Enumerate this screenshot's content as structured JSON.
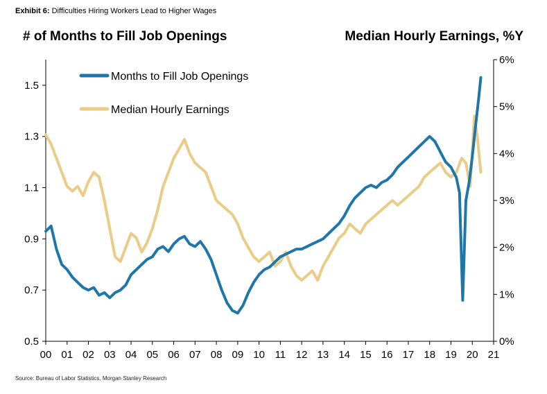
{
  "header": {
    "exhibit_label": "Exhibit 6:",
    "exhibit_title": "Difficulties Hiring Workers Lead to Higher Wages",
    "left_axis_title": "# of Months to Fill Job Openings",
    "right_axis_title": "Median Hourly Earnings, %Y"
  },
  "footer": {
    "source": "Source: Bureau of Labor Statistics, Morgan Stanley Research"
  },
  "colors": {
    "months_series": "#1f77a9",
    "earnings_series": "#eacc86",
    "axis": "#000000"
  },
  "chart_data": {
    "type": "line",
    "xlabel": "",
    "ylabel_left": "# of Months to Fill Job Openings",
    "ylabel_right": "Median Hourly Earnings, %Y",
    "xlim": [
      2000,
      2021
    ],
    "ylim_left": [
      0.5,
      1.6
    ],
    "ylim_right": [
      0,
      6
    ],
    "x_ticks": [
      "00",
      "01",
      "02",
      "03",
      "04",
      "05",
      "06",
      "07",
      "08",
      "09",
      "10",
      "11",
      "12",
      "13",
      "14",
      "15",
      "16",
      "17",
      "18",
      "19",
      "20",
      "21"
    ],
    "y_left_ticks": [
      "0.5",
      "0.7",
      "0.9",
      "1.1",
      "1.3",
      "1.5"
    ],
    "y_right_ticks": [
      "0%",
      "1%",
      "2%",
      "3%",
      "4%",
      "5%",
      "6%"
    ],
    "grid": false,
    "legend_position": "top-left",
    "series": [
      {
        "name": "Months to Fill Job Openings",
        "axis": "left",
        "x": [
          2000.0,
          2000.25,
          2000.5,
          2000.75,
          2001.0,
          2001.25,
          2001.5,
          2001.75,
          2002.0,
          2002.25,
          2002.5,
          2002.75,
          2003.0,
          2003.25,
          2003.5,
          2003.75,
          2004.0,
          2004.25,
          2004.5,
          2004.75,
          2005.0,
          2005.25,
          2005.5,
          2005.75,
          2006.0,
          2006.25,
          2006.5,
          2006.75,
          2007.0,
          2007.25,
          2007.5,
          2007.75,
          2008.0,
          2008.25,
          2008.5,
          2008.75,
          2009.0,
          2009.25,
          2009.5,
          2009.75,
          2010.0,
          2010.25,
          2010.5,
          2010.75,
          2011.0,
          2011.25,
          2011.5,
          2011.75,
          2012.0,
          2012.25,
          2012.5,
          2012.75,
          2013.0,
          2013.25,
          2013.5,
          2013.75,
          2014.0,
          2014.25,
          2014.5,
          2014.75,
          2015.0,
          2015.25,
          2015.5,
          2015.75,
          2016.0,
          2016.25,
          2016.5,
          2016.75,
          2017.0,
          2017.25,
          2017.5,
          2017.75,
          2018.0,
          2018.25,
          2018.5,
          2018.75,
          2019.0,
          2019.25,
          2019.4,
          2019.55,
          2019.7,
          2019.85,
          2020.0,
          2020.15,
          2020.3,
          2020.4
        ],
        "values": [
          0.93,
          0.95,
          0.86,
          0.8,
          0.78,
          0.75,
          0.73,
          0.71,
          0.7,
          0.71,
          0.68,
          0.69,
          0.67,
          0.69,
          0.7,
          0.72,
          0.76,
          0.78,
          0.8,
          0.82,
          0.83,
          0.86,
          0.87,
          0.85,
          0.88,
          0.9,
          0.91,
          0.88,
          0.87,
          0.89,
          0.86,
          0.82,
          0.76,
          0.7,
          0.65,
          0.62,
          0.61,
          0.64,
          0.69,
          0.73,
          0.76,
          0.78,
          0.79,
          0.81,
          0.83,
          0.84,
          0.85,
          0.86,
          0.86,
          0.87,
          0.88,
          0.89,
          0.9,
          0.92,
          0.94,
          0.96,
          0.99,
          1.03,
          1.06,
          1.08,
          1.1,
          1.11,
          1.1,
          1.12,
          1.13,
          1.15,
          1.18,
          1.2,
          1.22,
          1.24,
          1.26,
          1.28,
          1.3,
          1.28,
          1.24,
          1.2,
          1.18,
          1.14,
          1.08,
          0.66,
          1.05,
          1.12,
          1.22,
          1.34,
          1.45,
          1.53
        ]
      },
      {
        "name": "Median Hourly Earnings",
        "axis": "right",
        "x": [
          2000.0,
          2000.25,
          2000.5,
          2000.75,
          2001.0,
          2001.25,
          2001.5,
          2001.75,
          2002.0,
          2002.25,
          2002.5,
          2002.75,
          2003.0,
          2003.25,
          2003.5,
          2003.75,
          2004.0,
          2004.25,
          2004.5,
          2004.75,
          2005.0,
          2005.25,
          2005.5,
          2005.75,
          2006.0,
          2006.25,
          2006.5,
          2006.75,
          2007.0,
          2007.25,
          2007.5,
          2007.75,
          2008.0,
          2008.25,
          2008.5,
          2008.75,
          2009.0,
          2009.25,
          2009.5,
          2009.75,
          2010.0,
          2010.25,
          2010.5,
          2010.75,
          2011.0,
          2011.25,
          2011.5,
          2011.75,
          2012.0,
          2012.25,
          2012.5,
          2012.75,
          2013.0,
          2013.25,
          2013.5,
          2013.75,
          2014.0,
          2014.25,
          2014.5,
          2014.75,
          2015.0,
          2015.25,
          2015.5,
          2015.75,
          2016.0,
          2016.25,
          2016.5,
          2016.75,
          2017.0,
          2017.25,
          2017.5,
          2017.75,
          2018.0,
          2018.25,
          2018.5,
          2018.75,
          2019.0,
          2019.25,
          2019.5,
          2019.7,
          2019.9,
          2020.1,
          2020.25,
          2020.4
        ],
        "values": [
          4.4,
          4.2,
          3.9,
          3.6,
          3.3,
          3.2,
          3.3,
          3.1,
          3.4,
          3.6,
          3.5,
          3.0,
          2.4,
          1.8,
          1.7,
          2.0,
          2.3,
          2.2,
          1.9,
          2.1,
          2.4,
          2.8,
          3.3,
          3.6,
          3.9,
          4.1,
          4.3,
          4.0,
          3.8,
          3.7,
          3.6,
          3.3,
          3.0,
          2.9,
          2.8,
          2.7,
          2.5,
          2.2,
          2.0,
          1.8,
          1.7,
          1.8,
          1.9,
          1.6,
          1.7,
          1.9,
          1.6,
          1.4,
          1.3,
          1.4,
          1.5,
          1.3,
          1.6,
          1.8,
          2.0,
          2.2,
          2.3,
          2.5,
          2.4,
          2.3,
          2.5,
          2.6,
          2.7,
          2.8,
          2.9,
          3.0,
          2.9,
          3.0,
          3.1,
          3.2,
          3.3,
          3.5,
          3.6,
          3.7,
          3.8,
          3.6,
          3.5,
          3.6,
          3.9,
          3.8,
          3.3,
          4.8,
          4.3,
          3.6
        ]
      }
    ]
  },
  "legend": [
    {
      "label": "Months to Fill Job Openings"
    },
    {
      "label": "Median Hourly Earnings"
    }
  ]
}
